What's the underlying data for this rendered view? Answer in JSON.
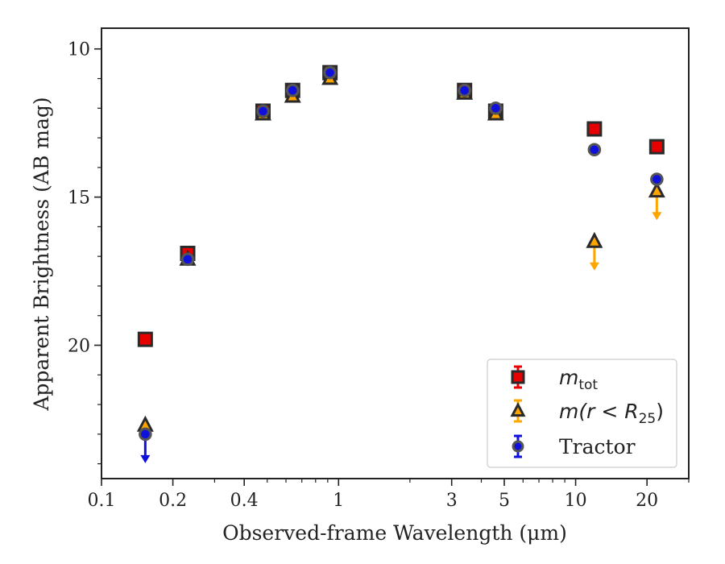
{
  "chart_data": {
    "type": "scatter",
    "title": "",
    "xlabel": "Observed-frame Wavelength (μm)",
    "ylabel": "Apparent Brightness (AB mag)",
    "xscale": "log",
    "xlim": [
      0.1,
      30
    ],
    "ylim": [
      24.5,
      9.3
    ],
    "yaxis_inverted": true,
    "x_ticks": [
      {
        "value": 0.1,
        "label": "0.1"
      },
      {
        "value": 0.2,
        "label": "0.2"
      },
      {
        "value": 0.4,
        "label": "0.4"
      },
      {
        "value": 1,
        "label": "1"
      },
      {
        "value": 3,
        "label": "3"
      },
      {
        "value": 5,
        "label": "5"
      },
      {
        "value": 10,
        "label": "10"
      },
      {
        "value": 20,
        "label": "20"
      }
    ],
    "x_minor_ticks": [
      0.3,
      0.5,
      0.6,
      0.7,
      0.8,
      0.9,
      2,
      4,
      6,
      7,
      8,
      9,
      30
    ],
    "y_ticks": [
      {
        "value": 10,
        "label": "10"
      },
      {
        "value": 15,
        "label": "15"
      },
      {
        "value": 20,
        "label": "20"
      }
    ],
    "grid": false,
    "legend_position": "bottom-right",
    "series": [
      {
        "key": "mtot",
        "label_base": "m",
        "label_sub": "tot",
        "marker": "square",
        "color": "#e60000",
        "edge": "#2a2a2a",
        "points": [
          {
            "x": 0.153,
            "y": 19.8
          },
          {
            "x": 0.231,
            "y": 16.9
          },
          {
            "x": 0.48,
            "y": 12.1
          },
          {
            "x": 0.64,
            "y": 11.4
          },
          {
            "x": 0.92,
            "y": 10.8
          },
          {
            "x": 3.4,
            "y": 11.4
          },
          {
            "x": 4.6,
            "y": 12.1
          },
          {
            "x": 12,
            "y": 12.7
          },
          {
            "x": 22,
            "y": 13.3
          }
        ]
      },
      {
        "key": "mr25",
        "label_base": "m(r < R",
        "label_sub": "25",
        "label_end": ")",
        "marker": "triangle",
        "color": "#ffa500",
        "edge": "#2a2a2a",
        "points": [
          {
            "x": 0.153,
            "y": 22.7,
            "upper_limit": false
          },
          {
            "x": 0.231,
            "y": 17.1
          },
          {
            "x": 0.48,
            "y": 12.2
          },
          {
            "x": 0.64,
            "y": 11.6
          },
          {
            "x": 0.92,
            "y": 11.0
          },
          {
            "x": 3.4,
            "y": 11.5
          },
          {
            "x": 4.6,
            "y": 12.2
          },
          {
            "x": 12,
            "y": 16.5,
            "upper_limit": true
          },
          {
            "x": 22,
            "y": 14.8,
            "upper_limit": true
          }
        ]
      },
      {
        "key": "tractor",
        "label_base": "Tractor",
        "marker": "circle",
        "color": "#1010dd",
        "edge": "#555555",
        "points": [
          {
            "x": 0.153,
            "y": 23.0,
            "upper_limit": true
          },
          {
            "x": 0.231,
            "y": 17.1
          },
          {
            "x": 0.48,
            "y": 12.1
          },
          {
            "x": 0.64,
            "y": 11.4
          },
          {
            "x": 0.92,
            "y": 10.8
          },
          {
            "x": 3.4,
            "y": 11.4
          },
          {
            "x": 4.6,
            "y": 12.0
          },
          {
            "x": 12,
            "y": 13.4
          },
          {
            "x": 22,
            "y": 14.4
          }
        ]
      }
    ]
  }
}
